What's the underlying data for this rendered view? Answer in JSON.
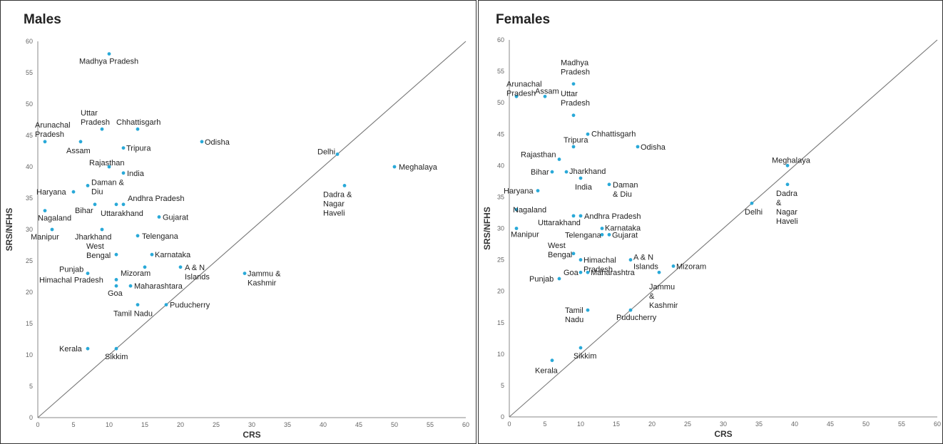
{
  "chart_data": [
    {
      "type": "scatter",
      "title": "Males",
      "xlabel": "CRS",
      "ylabel": "SRS/NFHS",
      "xlim": [
        0,
        60
      ],
      "ylim": [
        0,
        60
      ],
      "xticks": [
        0,
        5,
        10,
        15,
        20,
        25,
        30,
        35,
        40,
        45,
        50,
        55,
        60
      ],
      "yticks": [
        0,
        5,
        10,
        15,
        20,
        25,
        30,
        35,
        40,
        45,
        50,
        55,
        60
      ],
      "reference_line": "y = x",
      "point_color": "#29a9d8",
      "points": [
        {
          "label": "Madhya Pradesh",
          "x": 10,
          "y": 58
        },
        {
          "label": "Arunachal Pradesh",
          "x": 1,
          "y": 44
        },
        {
          "label": "Uttar Pradesh",
          "x": 9,
          "y": 46
        },
        {
          "label": "Chhattisgarh",
          "x": 14,
          "y": 46
        },
        {
          "label": "Assam",
          "x": 6,
          "y": 44
        },
        {
          "label": "Tripura",
          "x": 12,
          "y": 43
        },
        {
          "label": "Odisha",
          "x": 23,
          "y": 44
        },
        {
          "label": "Delhi",
          "x": 42,
          "y": 42
        },
        {
          "label": "Meghalaya",
          "x": 50,
          "y": 40
        },
        {
          "label": "Rajasthan",
          "x": 10,
          "y": 40
        },
        {
          "label": "India",
          "x": 12,
          "y": 39
        },
        {
          "label": "Daman & Diu",
          "x": 7,
          "y": 37
        },
        {
          "label": "Haryana",
          "x": 5,
          "y": 36
        },
        {
          "label": "Dadra & Nagar Haveli",
          "x": 43,
          "y": 37
        },
        {
          "label": "Andhra Pradesh",
          "x": 12,
          "y": 34
        },
        {
          "label": "Bihar",
          "x": 8,
          "y": 34
        },
        {
          "label": "Uttarakhand",
          "x": 11,
          "y": 34
        },
        {
          "label": "Nagaland",
          "x": 1,
          "y": 33
        },
        {
          "label": "Gujarat",
          "x": 17,
          "y": 32
        },
        {
          "label": "Manipur",
          "x": 2,
          "y": 30
        },
        {
          "label": "Jharkhand",
          "x": 9,
          "y": 30
        },
        {
          "label": "Telengana",
          "x": 14,
          "y": 29
        },
        {
          "label": "West Bengal",
          "x": 11,
          "y": 26
        },
        {
          "label": "Karnataka",
          "x": 16,
          "y": 26
        },
        {
          "label": "A & N Islands",
          "x": 20,
          "y": 24
        },
        {
          "label": "Mizoram",
          "x": 15,
          "y": 24
        },
        {
          "label": "Punjab",
          "x": 7,
          "y": 23
        },
        {
          "label": "Jammu & Kashmir",
          "x": 29,
          "y": 23
        },
        {
          "label": "Himachal Pradesh",
          "x": 11,
          "y": 22
        },
        {
          "label": "Goa",
          "x": 11,
          "y": 21
        },
        {
          "label": "Maharashtara",
          "x": 13,
          "y": 21
        },
        {
          "label": "Tamil Nadu",
          "x": 14,
          "y": 18
        },
        {
          "label": "Puducherry",
          "x": 18,
          "y": 18
        },
        {
          "label": "Kerala",
          "x": 7,
          "y": 11
        },
        {
          "label": "Sikkim",
          "x": 11,
          "y": 11
        }
      ]
    },
    {
      "type": "scatter",
      "title": "Females",
      "xlabel": "CRS",
      "ylabel": "SRS/NFHS",
      "xlim": [
        0,
        60
      ],
      "ylim": [
        0,
        60
      ],
      "xticks": [
        0,
        5,
        10,
        15,
        20,
        25,
        30,
        35,
        40,
        45,
        50,
        55,
        60
      ],
      "yticks": [
        0,
        5,
        10,
        15,
        20,
        25,
        30,
        35,
        40,
        45,
        50,
        55,
        60
      ],
      "reference_line": "y = x",
      "point_color": "#29a9d8",
      "points": [
        {
          "label": "Madhya Pradesh",
          "x": 9,
          "y": 53
        },
        {
          "label": "Arunachal Pradesh",
          "x": 1,
          "y": 51
        },
        {
          "label": "Assam",
          "x": 5,
          "y": 51
        },
        {
          "label": "Uttar Pradesh",
          "x": 9,
          "y": 48
        },
        {
          "label": "Chhattisgarh",
          "x": 11,
          "y": 45
        },
        {
          "label": "Tripura",
          "x": 9,
          "y": 43
        },
        {
          "label": "Odisha",
          "x": 18,
          "y": 43
        },
        {
          "label": "Rajasthan",
          "x": 7,
          "y": 41
        },
        {
          "label": "Meghalaya",
          "x": 39,
          "y": 40
        },
        {
          "label": "Bihar",
          "x": 6,
          "y": 39
        },
        {
          "label": "Jharkhand",
          "x": 8,
          "y": 39
        },
        {
          "label": "India",
          "x": 10,
          "y": 38
        },
        {
          "label": "Daman & Diu",
          "x": 14,
          "y": 37
        },
        {
          "label": "Dadra & Nagar Haveli",
          "x": 39,
          "y": 37
        },
        {
          "label": "Haryana",
          "x": 4,
          "y": 36
        },
        {
          "label": "Delhi",
          "x": 34,
          "y": 34
        },
        {
          "label": "Nagaland",
          "x": 1,
          "y": 33
        },
        {
          "label": "Andhra Pradesh",
          "x": 10,
          "y": 32
        },
        {
          "label": "Uttarakhand",
          "x": 9,
          "y": 32
        },
        {
          "label": "Karnataka",
          "x": 13,
          "y": 30
        },
        {
          "label": "Manipur",
          "x": 1,
          "y": 30
        },
        {
          "label": "Telengana",
          "x": 13,
          "y": 29
        },
        {
          "label": "Gujarat",
          "x": 14,
          "y": 29
        },
        {
          "label": "West Bengal",
          "x": 9,
          "y": 26
        },
        {
          "label": "Himachal Pradesh",
          "x": 10,
          "y": 25
        },
        {
          "label": "A & N Islands",
          "x": 17,
          "y": 25
        },
        {
          "label": "Mizoram",
          "x": 23,
          "y": 24
        },
        {
          "label": "Goa",
          "x": 10,
          "y": 23
        },
        {
          "label": "Maharashtra",
          "x": 11,
          "y": 23
        },
        {
          "label": "Jammu & Kashmir",
          "x": 21,
          "y": 23
        },
        {
          "label": "Punjab",
          "x": 7,
          "y": 22
        },
        {
          "label": "Tamil Nadu",
          "x": 11,
          "y": 17
        },
        {
          "label": "Puducherry",
          "x": 17,
          "y": 17
        },
        {
          "label": "Sikkim",
          "x": 10,
          "y": 11
        },
        {
          "label": "Kerala",
          "x": 6,
          "y": 9
        }
      ]
    }
  ]
}
